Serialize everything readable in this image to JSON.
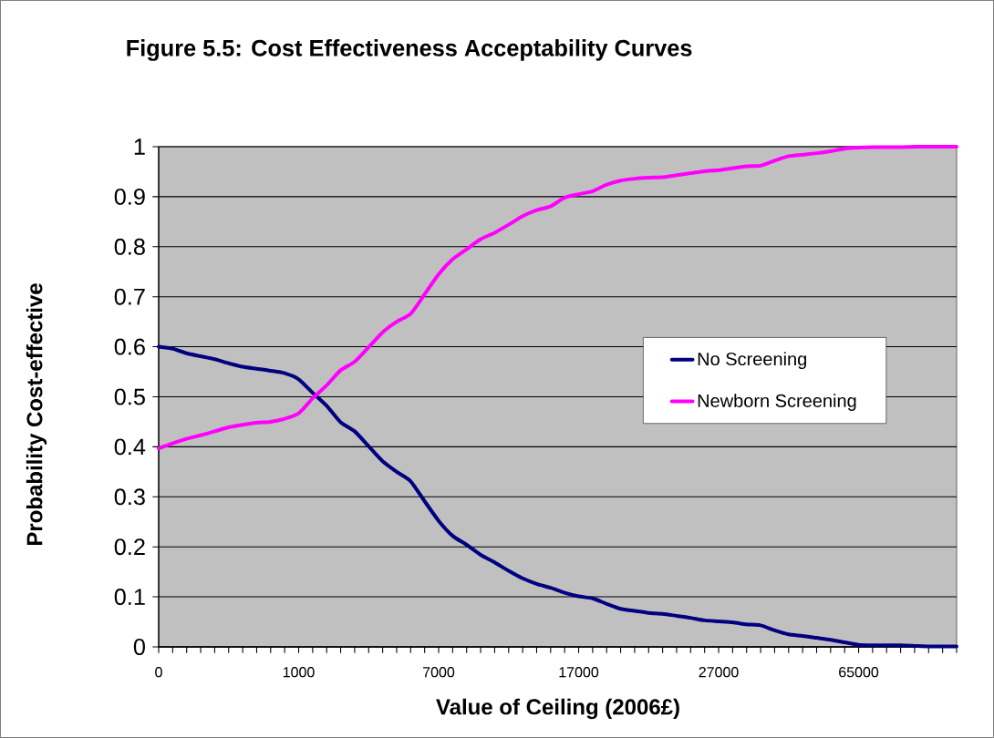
{
  "chart_data": {
    "type": "line",
    "title": "Figure 5.5: Cost Effectiveness Acceptability Curves",
    "xlabel": "Value of Ceiling (2006£)",
    "ylabel": "Probability Cost-effective",
    "categories": [
      "0",
      null,
      null,
      null,
      null,
      null,
      null,
      null,
      null,
      null,
      "1000",
      null,
      null,
      null,
      null,
      null,
      null,
      null,
      null,
      null,
      "7000",
      null,
      null,
      null,
      null,
      null,
      null,
      null,
      null,
      null,
      "17000",
      null,
      null,
      null,
      null,
      null,
      null,
      null,
      null,
      null,
      "27000",
      null,
      null,
      null,
      null,
      null,
      null,
      null,
      null,
      null,
      "65000",
      null,
      null,
      null,
      null,
      null,
      null,
      null
    ],
    "series": [
      {
        "name": "No Screening",
        "color": "#000080",
        "values": [
          0.6,
          0.596,
          0.587,
          0.581,
          0.575,
          0.567,
          0.56,
          0.556,
          0.552,
          0.547,
          0.535,
          0.508,
          0.482,
          0.449,
          0.431,
          0.401,
          0.371,
          0.35,
          0.331,
          0.291,
          0.252,
          0.222,
          0.204,
          0.184,
          0.169,
          0.152,
          0.137,
          0.126,
          0.118,
          0.108,
          0.101,
          0.097,
          0.086,
          0.076,
          0.072,
          0.068,
          0.066,
          0.062,
          0.058,
          0.053,
          0.051,
          0.049,
          0.045,
          0.043,
          0.033,
          0.025,
          0.022,
          0.018,
          0.014,
          0.009,
          0.004,
          0.003,
          0.003,
          0.003,
          0.002,
          0.001,
          0.001,
          0.001
        ]
      },
      {
        "name": "Newborn Screening",
        "color": "#ff00ff",
        "values": [
          0.397,
          0.407,
          0.416,
          0.423,
          0.431,
          0.439,
          0.444,
          0.448,
          0.45,
          0.456,
          0.467,
          0.497,
          0.523,
          0.553,
          0.57,
          0.599,
          0.629,
          0.65,
          0.666,
          0.705,
          0.745,
          0.775,
          0.795,
          0.815,
          0.828,
          0.844,
          0.861,
          0.873,
          0.881,
          0.898,
          0.905,
          0.911,
          0.924,
          0.932,
          0.936,
          0.938,
          0.939,
          0.943,
          0.947,
          0.951,
          0.953,
          0.957,
          0.961,
          0.962,
          0.972,
          0.981,
          0.984,
          0.987,
          0.991,
          0.996,
          0.998,
          0.999,
          0.999,
          0.999,
          1.0,
          1.0,
          1.0,
          1.0
        ]
      }
    ],
    "ylim": [
      0,
      1
    ],
    "yticks": [
      0,
      0.1,
      0.2,
      0.3,
      0.4,
      0.5,
      0.6,
      0.7,
      0.8,
      0.9,
      1
    ],
    "grid": "y",
    "legend": "right",
    "marker": "none",
    "line_style": "solid"
  }
}
